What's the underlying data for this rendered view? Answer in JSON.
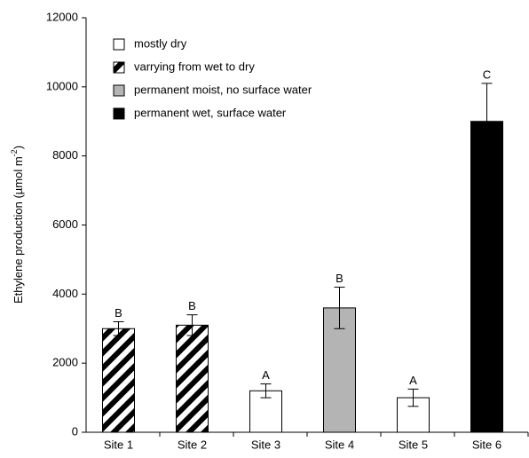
{
  "chart_data": {
    "type": "bar",
    "y_label": {
      "text": "Ethylene production (µmol m",
      "superscript": "-2",
      "suffix": ")"
    },
    "categories": [
      "Site 1",
      "Site 2",
      "Site 3",
      "Site 4",
      "Site 5",
      "Site 6"
    ],
    "values": [
      3000,
      3100,
      1200,
      3600,
      1000,
      9000
    ],
    "errors": [
      200,
      300,
      200,
      600,
      250,
      1100
    ],
    "annotations": [
      "B",
      "B",
      "A",
      "B",
      "A",
      "C"
    ],
    "bar_styles": [
      "hatch",
      "hatch",
      "white",
      "gray",
      "white",
      "black"
    ],
    "legend": [
      {
        "name": "mostly dry",
        "style": "white"
      },
      {
        "name": "varrying from wet to dry",
        "style": "hatch"
      },
      {
        "name": "permanent moist, no surface water",
        "style": "gray"
      },
      {
        "name": "permanent wet, surface water",
        "style": "black"
      }
    ],
    "ylim": [
      0,
      12000
    ],
    "yticks": [
      0,
      2000,
      4000,
      6000,
      8000,
      10000,
      12000
    ],
    "grid": false
  }
}
